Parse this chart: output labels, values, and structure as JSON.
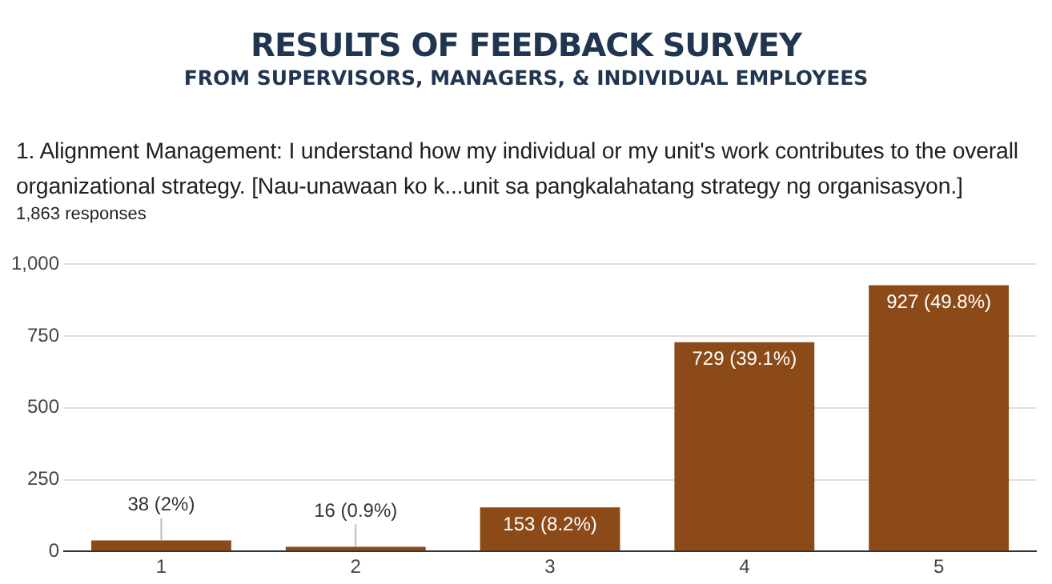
{
  "chart_data": {
    "type": "bar",
    "title": "RESULTS OF FEEDBACK SURVEY",
    "subtitle": "FROM SUPERVISORS, MANAGERS, & INDIVIDUAL EMPLOYEES",
    "annotations": [
      "1. Alignment Management: I understand how my individual or my unit's work contributes to the overall organizational strategy. [Nau-unawaan ko k...unit sa pangkalahatang strategy ng organisasyon.]",
      "1,863 responses"
    ],
    "categories": [
      "1",
      "2",
      "3",
      "4",
      "5"
    ],
    "values": [
      38,
      16,
      153,
      729,
      927
    ],
    "value_labels": [
      "38 (2%)",
      "16 (0.9%)",
      "153 (8.2%)",
      "729 (39.1%)",
      "927 (49.8%)"
    ],
    "color": "#8b4a17",
    "ylim": [
      0,
      1000
    ],
    "yticks": [
      {
        "value": 0,
        "label": "0"
      },
      {
        "value": 250,
        "label": "250"
      },
      {
        "value": 500,
        "label": "500"
      },
      {
        "value": 750,
        "label": "750"
      },
      {
        "value": 1000,
        "label": "1,000"
      }
    ],
    "grid": "y",
    "legend": false
  }
}
